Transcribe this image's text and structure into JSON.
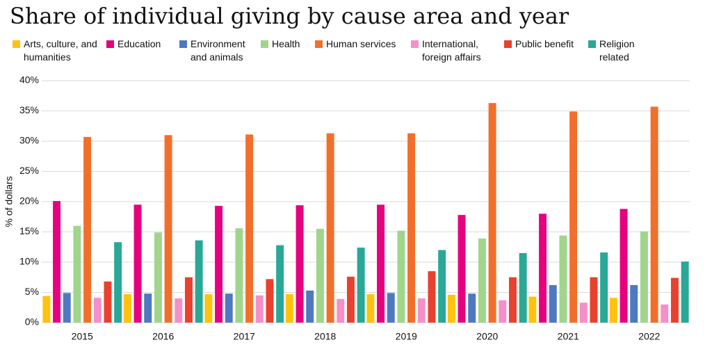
{
  "chart_data": {
    "type": "bar",
    "title": "Share of individual giving by cause area and year",
    "y_label": "% of dollars",
    "categories": [
      "2015",
      "2016",
      "2017",
      "2018",
      "2019",
      "2020",
      "2021",
      "2022"
    ],
    "series": [
      {
        "name": "Arts, culture, and humanities",
        "color": "#ffc20e",
        "values": [
          4.4,
          4.7,
          4.7,
          4.7,
          4.7,
          4.6,
          4.3,
          4.1
        ]
      },
      {
        "name": "Education",
        "color": "#e6007e",
        "values": [
          20.1,
          19.5,
          19.3,
          19.4,
          19.5,
          17.8,
          18.0,
          18.8
        ]
      },
      {
        "name": "Environment and animals",
        "color": "#4e79c0",
        "values": [
          4.9,
          4.8,
          4.8,
          5.3,
          4.9,
          4.8,
          6.2,
          6.2
        ]
      },
      {
        "name": "Health",
        "color": "#9fd68c",
        "values": [
          16.0,
          14.9,
          15.6,
          15.5,
          15.2,
          13.9,
          14.4,
          15.1
        ]
      },
      {
        "name": "Human services",
        "color": "#f26f2b",
        "values": [
          30.7,
          31.0,
          31.1,
          31.3,
          31.3,
          36.3,
          34.9,
          35.7
        ]
      },
      {
        "name": "International, foreign affairs",
        "color": "#f48fc9",
        "values": [
          4.1,
          4.0,
          4.5,
          3.9,
          4.0,
          3.7,
          3.3,
          3.0
        ]
      },
      {
        "name": "Public benefit",
        "color": "#e8412f",
        "values": [
          6.8,
          7.5,
          7.2,
          7.6,
          8.5,
          7.5,
          7.5,
          7.4
        ]
      },
      {
        "name": "Religion related",
        "color": "#2aa897",
        "values": [
          13.3,
          13.6,
          12.8,
          12.4,
          12.0,
          11.5,
          11.6,
          10.1
        ]
      }
    ],
    "ylim": [
      0,
      40
    ],
    "yticks": [
      {
        "value": 0,
        "label": "0%"
      },
      {
        "value": 5,
        "label": "5%"
      },
      {
        "value": 10,
        "label": "10%"
      },
      {
        "value": 15,
        "label": "15%"
      },
      {
        "value": 20,
        "label": "20%"
      },
      {
        "value": 25,
        "label": "25%"
      },
      {
        "value": 30,
        "label": "30%"
      },
      {
        "value": 35,
        "label": "35%"
      },
      {
        "value": 40,
        "label": "40%"
      }
    ],
    "grid": true
  }
}
